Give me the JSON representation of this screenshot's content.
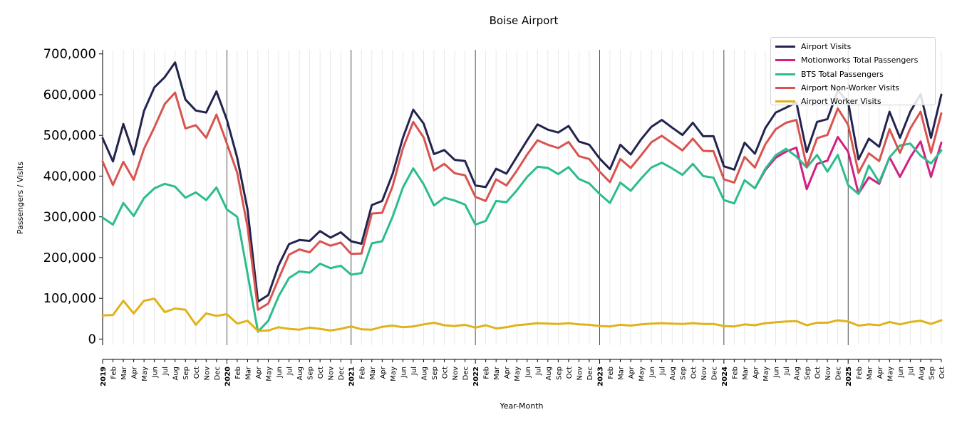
{
  "chart_data": {
    "type": "line",
    "title": "Boise Airport",
    "xlabel": "Year-Month",
    "ylabel": "Passengers / Visits",
    "ylim": [
      -15000,
      710000
    ],
    "yticks": [
      0,
      100000,
      200000,
      300000,
      400000,
      500000,
      600000,
      700000
    ],
    "ytick_labels": [
      "0",
      "100,000",
      "200,000",
      "300,000",
      "400,000",
      "500,000",
      "600,000",
      "700,000"
    ],
    "grid": "vertical",
    "legend_position": "top-right",
    "years": [
      "2019",
      "2020",
      "2021",
      "2022",
      "2023",
      "2024",
      "2025"
    ],
    "months": [
      "Jan",
      "Feb",
      "Mar",
      "Apr",
      "May",
      "Jun",
      "Jul",
      "Aug",
      "Sep",
      "Oct",
      "Nov",
      "Dec"
    ],
    "x_start": "2019-01",
    "x_end": "2025-10",
    "series": [
      {
        "name": "Airport Visits",
        "color": "#22244e",
        "start": "2019-01",
        "values": [
          493000,
          436000,
          528000,
          453000,
          560000,
          618000,
          643000,
          679000,
          588000,
          561000,
          556000,
          608000,
          538000,
          445000,
          318000,
          92000,
          108000,
          181000,
          233000,
          243000,
          241000,
          265000,
          249000,
          262000,
          240000,
          234000,
          329000,
          339000,
          405000,
          494000,
          563000,
          529000,
          454000,
          464000,
          440000,
          437000,
          377000,
          373000,
          418000,
          406000,
          447000,
          488000,
          527000,
          514000,
          507000,
          523000,
          485000,
          477000,
          443000,
          417000,
          477000,
          453000,
          490000,
          521000,
          538000,
          519000,
          501000,
          531000,
          498000,
          498000,
          424000,
          416000,
          482000,
          455000,
          518000,
          556000,
          568000,
          581000,
          459000,
          533000,
          540000,
          610000,
          582000,
          441000,
          492000,
          472000,
          558000,
          494000,
          558000,
          601000,
          494000,
          600000
        ]
      },
      {
        "name": "Motionworks Total Passengers",
        "color": "#d21f85",
        "start": "2024-04",
        "values": [
          370000,
          415000,
          445000,
          460000,
          470000,
          368000,
          430000,
          438000,
          496000,
          460000,
          357000,
          397000,
          381000,
          446000,
          398000,
          446000,
          485000,
          398000,
          482000
        ]
      },
      {
        "name": "BTS Total Passengers",
        "color": "#2bbd8c",
        "start": "2019-01",
        "values": [
          298000,
          281000,
          334000,
          302000,
          346000,
          370000,
          381000,
          374000,
          347000,
          360000,
          341000,
          372000,
          318000,
          300000,
          160000,
          18000,
          45000,
          105000,
          150000,
          166000,
          163000,
          185000,
          174000,
          180000,
          158000,
          162000,
          235000,
          240000,
          300000,
          372000,
          419000,
          380000,
          328000,
          347000,
          340000,
          330000,
          281000,
          290000,
          339000,
          336000,
          365000,
          398000,
          423000,
          420000,
          405000,
          422000,
          393000,
          382000,
          356000,
          334000,
          384000,
          364000,
          394000,
          421000,
          433000,
          419000,
          403000,
          430000,
          400000,
          396000,
          341000,
          333000,
          390000,
          370000,
          418000,
          451000,
          467000,
          448000,
          421000,
          452000,
          411000,
          452000,
          378000,
          356000,
          426000,
          385000,
          446000,
          475000,
          480000,
          450000,
          431000,
          463000
        ]
      },
      {
        "name": "Airport Non-Worker Visits",
        "color": "#d9534f",
        "start": "2019-01",
        "values": [
          436000,
          378000,
          435000,
          391000,
          467000,
          520000,
          577000,
          605000,
          517000,
          525000,
          494000,
          551000,
          480000,
          408000,
          275000,
          72000,
          87000,
          148000,
          207000,
          220000,
          213000,
          240000,
          229000,
          237000,
          209000,
          210000,
          308000,
          310000,
          375000,
          468000,
          533000,
          495000,
          414000,
          430000,
          407000,
          402000,
          349000,
          339000,
          392000,
          377000,
          413000,
          453000,
          488000,
          477000,
          469000,
          484000,
          449000,
          442000,
          411000,
          385000,
          442000,
          420000,
          451000,
          483000,
          499000,
          481000,
          463000,
          492000,
          462000,
          461000,
          392000,
          384000,
          447000,
          421000,
          478000,
          515000,
          531000,
          538000,
          423000,
          493000,
          501000,
          566000,
          526000,
          408000,
          456000,
          437000,
          515000,
          457000,
          517000,
          558000,
          457000,
          554000
        ]
      },
      {
        "name": "Airport Worker Visits",
        "color": "#e0b21b",
        "start": "2019-01",
        "values": [
          58000,
          59000,
          94000,
          63000,
          94000,
          99000,
          66000,
          75000,
          72000,
          35000,
          63000,
          57000,
          61000,
          38000,
          45000,
          20000,
          21000,
          29000,
          25000,
          23000,
          28000,
          25000,
          21000,
          25000,
          31000,
          24000,
          23000,
          30000,
          33000,
          29000,
          31000,
          36000,
          40000,
          34000,
          32000,
          35000,
          28000,
          34000,
          26000,
          29000,
          34000,
          36000,
          39000,
          38000,
          37000,
          39000,
          36000,
          35000,
          32000,
          31000,
          35000,
          33000,
          36000,
          38000,
          39000,
          38000,
          37000,
          39000,
          37000,
          37000,
          32000,
          31000,
          36000,
          34000,
          39000,
          41000,
          43000,
          44000,
          34000,
          40000,
          40000,
          46000,
          43000,
          33000,
          36000,
          34000,
          42000,
          36000,
          42000,
          45000,
          37000,
          46000
        ]
      }
    ]
  }
}
